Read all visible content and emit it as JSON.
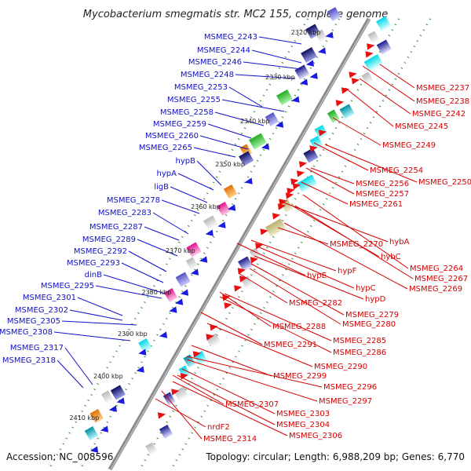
{
  "title": "Mycobacterium smegmatis str. MC2 155, complete genome",
  "footer": {
    "accession": "Accession: NC_008596",
    "stats": "Topology: circular; Length: 6,988,209 bp; Genes: 6,770"
  },
  "colors": {
    "backbone": "#888888",
    "reverse_label": "#1010c8",
    "forward_label": "#d40000",
    "tick": "#2a8a2a",
    "reverse_arrow": "#1a1ae0",
    "forward_arrow": "#e81010"
  },
  "kbp_ticks": [
    "2320 kbp",
    "2330 kbp",
    "2340 kbp",
    "2350 kbp",
    "2360 kbp",
    "2370 kbp",
    "2380 kbp",
    "2390 kbp",
    "2400 kbp",
    "2410 kbp"
  ],
  "left_labels": [
    "MSMEG_2243",
    "MSMEG_2244",
    "MSMEG_2246",
    "MSMEG_2248",
    "MSMEG_2253",
    "MSMEG_2255",
    "MSMEG_2258",
    "MSMEG_2259",
    "MSMEG_2260",
    "MSMEG_2265",
    "hypB",
    "hypA",
    "ligB",
    "MSMEG_2278",
    "MSMEG_2283",
    "MSMEG_2287",
    "MSMEG_2289",
    "MSMEG_2292",
    "MSMEG_2293",
    "dinB",
    "MSMEG_2295",
    "MSMEG_2301",
    "MSMEG_2302",
    "MSMEG_2305",
    "MSMEG_2308",
    "MSMEG_2317",
    "MSMEG_2318"
  ],
  "right_labels": [
    "MSMEG_2237",
    "MSMEG_2238",
    "MSMEG_2242",
    "MSMEG_2245",
    "MSMEG_2249",
    "MSMEG_2254",
    "MSMEG_2250",
    "MSMEG_2256",
    "MSMEG_2257",
    "MSMEG_2261",
    "hybA",
    "MSMEG_2270",
    "hybC",
    "MSMEG_2264",
    "MSMEG_2267",
    "hypF",
    "MSMEG_2269",
    "hypE",
    "hypC",
    "hypD",
    "MSMEG_2282",
    "MSMEG_2279",
    "MSMEG_2280",
    "MSMEG_2288",
    "MSMEG_2285",
    "MSMEG_2291",
    "MSMEG_2286",
    "MSMEG_2290",
    "MSMEG_2299",
    "MSMEG_2296",
    "MSMEG_2297",
    "MSMEG_2307",
    "MSMEG_2303",
    "MSMEG_2304",
    "MSMEG_2306",
    "nrdF2",
    "MSMEG_2314"
  ]
}
